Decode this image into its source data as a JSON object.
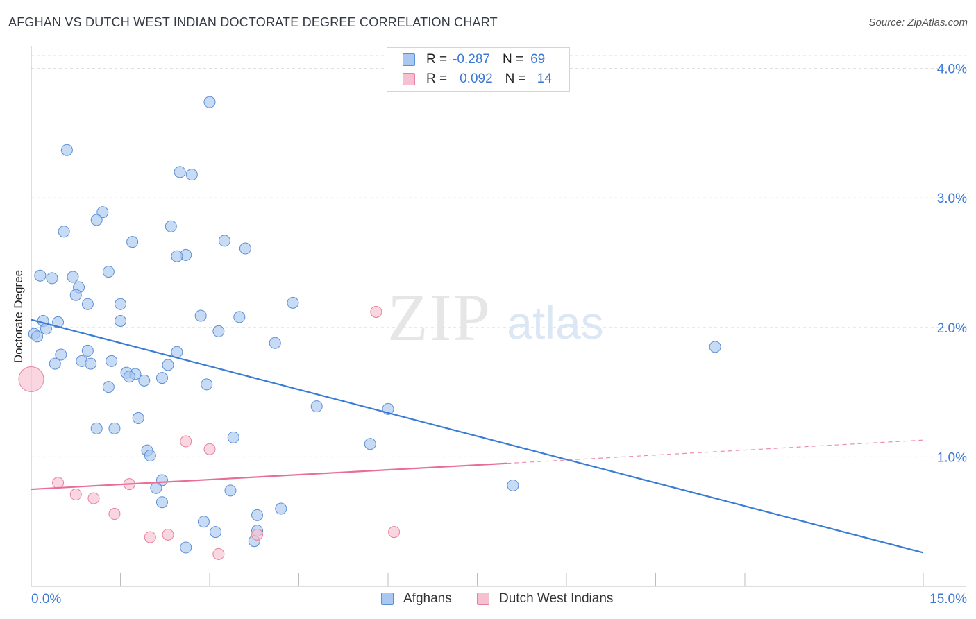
{
  "header": {
    "title": "AFGHAN VS DUTCH WEST INDIAN DOCTORATE DEGREE CORRELATION CHART",
    "source": "Source: ZipAtlas.com"
  },
  "watermark": {
    "zip": "ZIP",
    "atlas": "atlas"
  },
  "legend": {
    "rows": [
      {
        "r_label": "R =",
        "r_value": "-0.287",
        "n_label": "N =",
        "n_value": "69",
        "color": "#a9c8f0",
        "border": "#5b8fd6"
      },
      {
        "r_label": "R =",
        "r_value": "0.092",
        "n_label": "N =",
        "n_value": "14",
        "color": "#f7c0d0",
        "border": "#e6809f"
      }
    ]
  },
  "bottom_legend": {
    "afghans": "Afghans",
    "dutch": "Dutch West Indians"
  },
  "chart_data": {
    "type": "scatter",
    "title": "AFGHAN VS DUTCH WEST INDIAN DOCTORATE DEGREE CORRELATION CHART",
    "xlabel": "",
    "ylabel": "Doctorate Degree",
    "xlim": [
      0,
      15
    ],
    "ylim": [
      0,
      4.1
    ],
    "x_tick_labels": [
      "0.0%",
      "15.0%"
    ],
    "y_ticks": [
      1,
      2,
      3,
      4
    ],
    "y_tick_labels": [
      "1.0%",
      "2.0%",
      "3.0%",
      "4.0%"
    ],
    "grid": true,
    "legend_position": "top-center",
    "colors": {
      "afghans": "#3a7bd5",
      "afghans_fill": "#a9c8f0",
      "dutch": "#e86e97",
      "dutch_fill": "#f7c0d0"
    },
    "series": [
      {
        "name": "Afghans",
        "r": -0.287,
        "n": 69,
        "trend": {
          "x": [
            0,
            15
          ],
          "y": [
            2.06,
            0.26
          ]
        },
        "points": [
          [
            3.0,
            3.74
          ],
          [
            0.6,
            3.37
          ],
          [
            2.5,
            3.2
          ],
          [
            2.7,
            3.18
          ],
          [
            1.2,
            2.89
          ],
          [
            1.1,
            2.83
          ],
          [
            0.55,
            2.74
          ],
          [
            2.35,
            2.78
          ],
          [
            1.7,
            2.66
          ],
          [
            3.25,
            2.67
          ],
          [
            3.6,
            2.61
          ],
          [
            2.6,
            2.56
          ],
          [
            2.45,
            2.55
          ],
          [
            1.3,
            2.43
          ],
          [
            0.15,
            2.4
          ],
          [
            0.35,
            2.38
          ],
          [
            0.7,
            2.39
          ],
          [
            0.8,
            2.31
          ],
          [
            0.75,
            2.25
          ],
          [
            0.95,
            2.18
          ],
          [
            1.5,
            2.18
          ],
          [
            4.4,
            2.19
          ],
          [
            2.85,
            2.09
          ],
          [
            3.5,
            2.08
          ],
          [
            0.2,
            2.05
          ],
          [
            0.45,
            2.04
          ],
          [
            1.5,
            2.05
          ],
          [
            0.25,
            1.99
          ],
          [
            3.15,
            1.97
          ],
          [
            0.05,
            1.95
          ],
          [
            0.1,
            1.93
          ],
          [
            4.1,
            1.88
          ],
          [
            11.5,
            1.85
          ],
          [
            0.95,
            1.82
          ],
          [
            2.45,
            1.81
          ],
          [
            0.5,
            1.79
          ],
          [
            0.85,
            1.74
          ],
          [
            1.35,
            1.74
          ],
          [
            0.4,
            1.72
          ],
          [
            1.0,
            1.72
          ],
          [
            2.3,
            1.71
          ],
          [
            1.6,
            1.65
          ],
          [
            1.75,
            1.64
          ],
          [
            1.65,
            1.62
          ],
          [
            2.2,
            1.61
          ],
          [
            1.9,
            1.59
          ],
          [
            2.95,
            1.56
          ],
          [
            1.3,
            1.54
          ],
          [
            4.8,
            1.39
          ],
          [
            6.0,
            1.37
          ],
          [
            1.8,
            1.3
          ],
          [
            1.1,
            1.22
          ],
          [
            1.4,
            1.22
          ],
          [
            3.4,
            1.15
          ],
          [
            5.7,
            1.1
          ],
          [
            1.95,
            1.05
          ],
          [
            2.0,
            1.01
          ],
          [
            2.2,
            0.82
          ],
          [
            2.1,
            0.76
          ],
          [
            3.35,
            0.74
          ],
          [
            8.1,
            0.78
          ],
          [
            2.2,
            0.65
          ],
          [
            4.2,
            0.6
          ],
          [
            3.8,
            0.55
          ],
          [
            2.9,
            0.5
          ],
          [
            3.1,
            0.42
          ],
          [
            3.8,
            0.43
          ],
          [
            3.75,
            0.35
          ],
          [
            2.6,
            0.3
          ]
        ]
      },
      {
        "name": "Dutch West Indians",
        "r": 0.092,
        "n": 14,
        "trend": {
          "x": [
            0,
            8.0
          ],
          "y": [
            0.75,
            0.95
          ]
        },
        "trend_dashed": {
          "x": [
            8.0,
            15
          ],
          "y": [
            0.95,
            1.13
          ]
        },
        "points": [
          [
            0.0,
            1.6
          ],
          [
            5.8,
            2.12
          ],
          [
            2.6,
            1.12
          ],
          [
            3.0,
            1.06
          ],
          [
            0.45,
            0.8
          ],
          [
            1.65,
            0.79
          ],
          [
            0.75,
            0.71
          ],
          [
            1.05,
            0.68
          ],
          [
            1.4,
            0.56
          ],
          [
            2.3,
            0.4
          ],
          [
            2.0,
            0.38
          ],
          [
            6.1,
            0.42
          ],
          [
            3.8,
            0.4
          ],
          [
            3.15,
            0.25
          ]
        ]
      }
    ]
  }
}
